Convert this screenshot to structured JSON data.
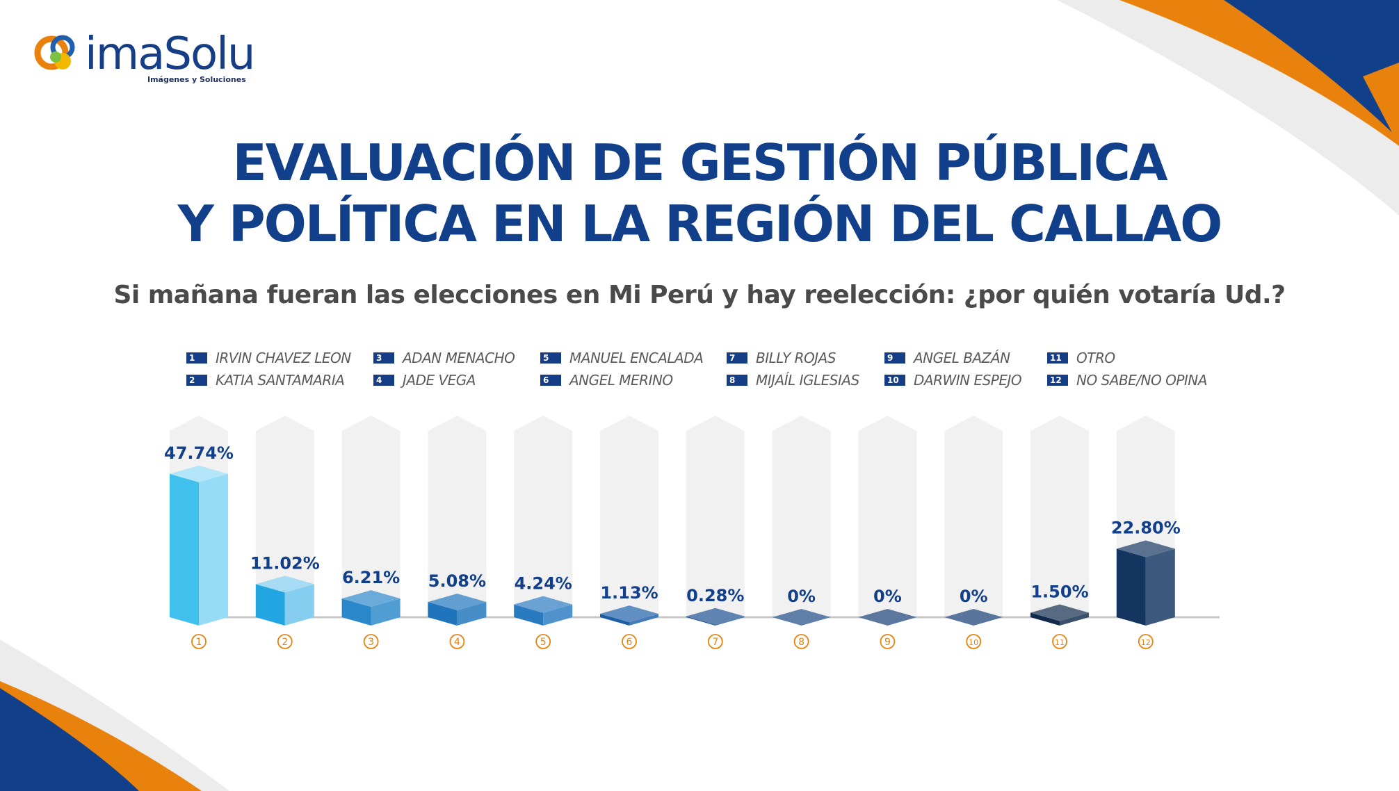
{
  "brand": {
    "name": "imaSolu",
    "tagline": "Imágenes y Soluciones",
    "colors": {
      "navy": "#123f8a",
      "orange": "#e8820c",
      "light_blue": "#41c0ee"
    }
  },
  "title_lines": [
    "EVALUACIÓN DE GESTIÓN PÚBLICA",
    "Y POLÍTICA EN LA REGIÓN DEL CALLAO"
  ],
  "subtitle": "Si mañana fueran las elecciones en Mi Perú y hay reelección: ¿por quién votaría Ud.?",
  "legend": [
    {
      "num": "1",
      "name": "IRVIN CHAVEZ LEON"
    },
    {
      "num": "2",
      "name": "KATIA SANTAMARIA"
    },
    {
      "num": "3",
      "name": "ADAN MENACHO"
    },
    {
      "num": "4",
      "name": "JADE VEGA"
    },
    {
      "num": "5",
      "name": "MANUEL ENCALADA"
    },
    {
      "num": "6",
      "name": "ANGEL MERINO"
    },
    {
      "num": "7",
      "name": "BILLY ROJAS"
    },
    {
      "num": "8",
      "name": "MIJAÍL IGLESIAS"
    },
    {
      "num": "9",
      "name": "ANGEL BAZÁN"
    },
    {
      "num": "10",
      "name": "DARWIN ESPEJO"
    },
    {
      "num": "11",
      "name": "OTRO"
    },
    {
      "num": "12",
      "name": "NO SABE/NO OPINA"
    }
  ],
  "chart_data": {
    "type": "bar",
    "categories": [
      "1",
      "2",
      "3",
      "4",
      "5",
      "6",
      "7",
      "8",
      "9",
      "10",
      "11",
      "12"
    ],
    "values": [
      47.74,
      11.02,
      6.21,
      5.08,
      4.24,
      1.13,
      0.28,
      0,
      0,
      0,
      1.5,
      22.8
    ],
    "data_labels": [
      "47.74%",
      "11.02%",
      "6.21%",
      "5.08%",
      "4.24%",
      "1.13%",
      "0.28%",
      "0%",
      "0%",
      "0%",
      "1.50%",
      "22.80%"
    ],
    "ylim": [
      0,
      50
    ],
    "bar_colors": [
      "#41c0ee",
      "#22a6e2",
      "#2a87c9",
      "#1f74bb",
      "#2a7ac0",
      "#1c5fa6",
      "#1a4f90",
      "#1a4682",
      "#143c74",
      "#133a70",
      "#102a4c",
      "#133560"
    ]
  }
}
